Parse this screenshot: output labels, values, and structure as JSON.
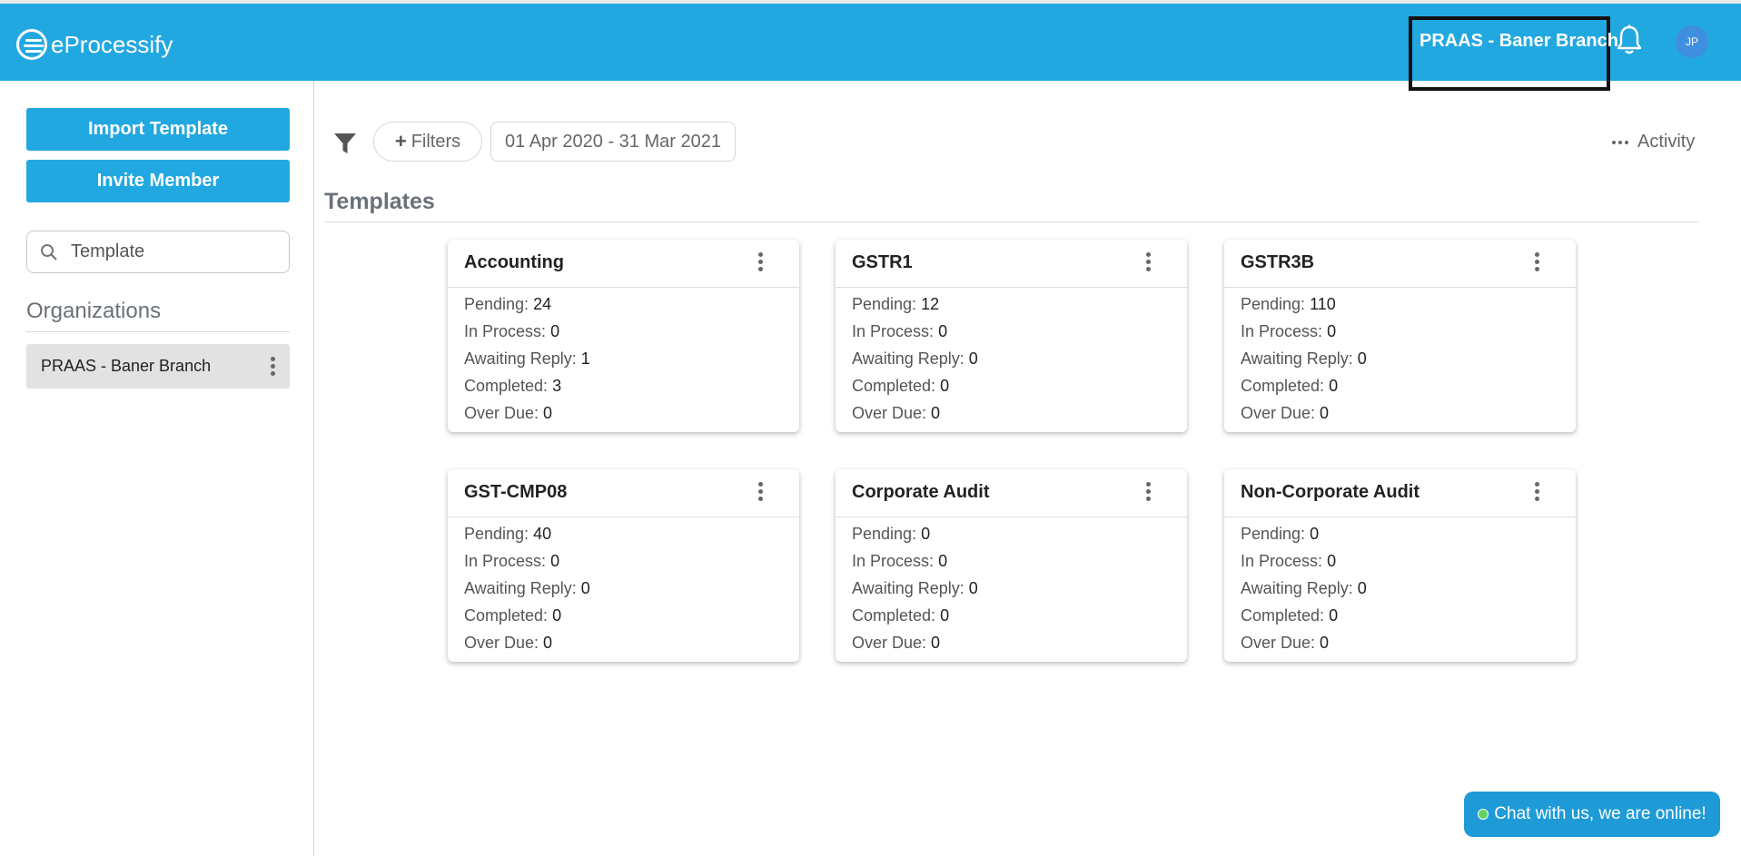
{
  "header": {
    "app_name": "eProcessify",
    "branch": "PRAAS - Baner Branch",
    "avatar_initials": "JP",
    "brand_color": "#21a8e1"
  },
  "sidebar": {
    "import_label": "Import Template",
    "invite_label": "Invite Member",
    "search_value": "Template",
    "organizations_title": "Organizations",
    "organizations": [
      {
        "name": "PRAAS - Baner Branch"
      }
    ]
  },
  "toolbar": {
    "filters_label": "Filters",
    "date_range": "01 Apr 2020 - 31 Mar 2021",
    "activity_label": "Activity"
  },
  "main": {
    "section_title": "Templates",
    "stat_labels": {
      "pending": "Pending:",
      "in_process": "In Process:",
      "awaiting_reply": "Awaiting Reply:",
      "completed": "Completed:",
      "over_due": "Over Due:"
    },
    "templates": [
      {
        "name": "Accounting",
        "pending": "24",
        "in_process": "0",
        "awaiting_reply": "1",
        "completed": "3",
        "over_due": "0"
      },
      {
        "name": "GSTR1",
        "pending": "12",
        "in_process": "0",
        "awaiting_reply": "0",
        "completed": "0",
        "over_due": "0"
      },
      {
        "name": "GSTR3B",
        "pending": "110",
        "in_process": "0",
        "awaiting_reply": "0",
        "completed": "0",
        "over_due": "0"
      },
      {
        "name": "GST-CMP08",
        "pending": "40",
        "in_process": "0",
        "awaiting_reply": "0",
        "completed": "0",
        "over_due": "0"
      },
      {
        "name": "Corporate Audit",
        "pending": "0",
        "in_process": "0",
        "awaiting_reply": "0",
        "completed": "0",
        "over_due": "0"
      },
      {
        "name": "Non-Corporate Audit",
        "pending": "0",
        "in_process": "0",
        "awaiting_reply": "0",
        "completed": "0",
        "over_due": "0"
      }
    ]
  },
  "chat": {
    "label": "Chat with us, we are online!"
  }
}
